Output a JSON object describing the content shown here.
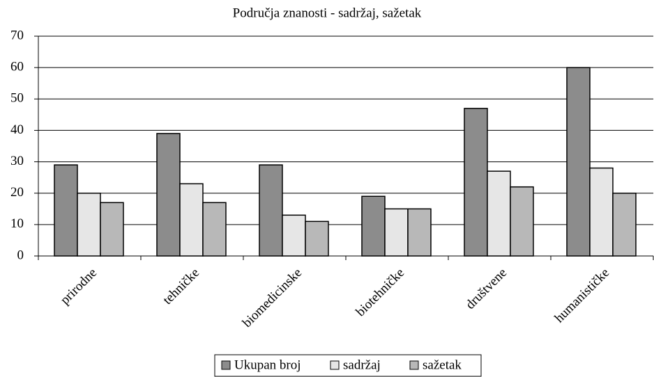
{
  "chart_data": {
    "type": "bar",
    "title": "Područja znanosti - sadržaj, sažetak",
    "categories": [
      "prirodne",
      "tehničke",
      "biomedicinske",
      "biotehničke",
      "društvene",
      "humanističke"
    ],
    "series": [
      {
        "name": "Ukupan broj",
        "color": "#8c8c8c",
        "values": [
          29,
          39,
          29,
          19,
          47,
          60
        ]
      },
      {
        "name": "sadržaj",
        "color": "#e6e6e6",
        "values": [
          20,
          23,
          13,
          15,
          27,
          28
        ]
      },
      {
        "name": "sažetak",
        "color": "#b8b8b8",
        "values": [
          17,
          17,
          11,
          15,
          22,
          20
        ]
      }
    ],
    "ylim": [
      0,
      70
    ],
    "yticks": [
      0,
      10,
      20,
      30,
      40,
      50,
      60,
      70
    ],
    "grid": true,
    "legend": "bottom"
  }
}
